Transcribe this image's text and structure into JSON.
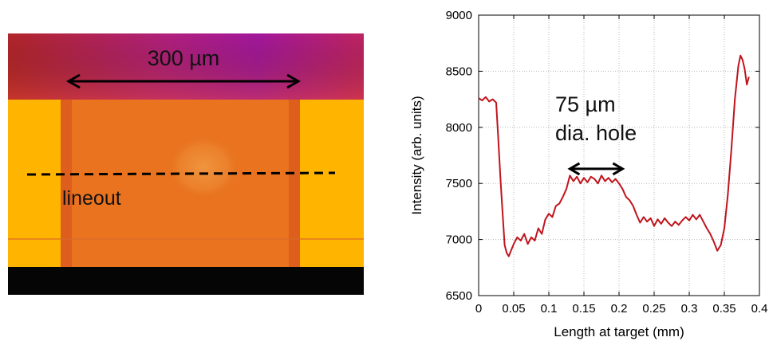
{
  "image_panel": {
    "scale_label": "300 µm",
    "lineout_label": "lineout"
  },
  "colors": {
    "trace": "#c0141c",
    "axis": "#000000",
    "grid": "#b8b8b8",
    "image_top": "#b2207e",
    "image_side": "#ffb400",
    "image_center": "#e9731f",
    "image_bottom": "#050505"
  },
  "chart_data": {
    "type": "line",
    "title": "",
    "xlabel": "Length at target (mm)",
    "ylabel": "Intensity (arb. units)",
    "xlim": [
      0,
      0.4
    ],
    "ylim": [
      6500,
      9000
    ],
    "xticks": [
      "0",
      "0.05",
      "0.1",
      "0.15",
      "0.2",
      "0.25",
      "0.3",
      "0.35",
      "0.4"
    ],
    "yticks": [
      "6500",
      "7000",
      "7500",
      "8000",
      "8500",
      "9000"
    ],
    "grid": true,
    "annotation": {
      "line1": "75 µm",
      "line2": "dia. hole",
      "x_range": [
        0.13,
        0.205
      ],
      "y": 7630
    },
    "series": [
      {
        "x": [
          0.0,
          0.005,
          0.01,
          0.015,
          0.02,
          0.025,
          0.028,
          0.031,
          0.034,
          0.037,
          0.04,
          0.043,
          0.046,
          0.05,
          0.055,
          0.06,
          0.065,
          0.07,
          0.075,
          0.08,
          0.085,
          0.09,
          0.095,
          0.1,
          0.105,
          0.11,
          0.115,
          0.12,
          0.125,
          0.13,
          0.135,
          0.14,
          0.145,
          0.15,
          0.155,
          0.16,
          0.165,
          0.17,
          0.175,
          0.18,
          0.185,
          0.19,
          0.195,
          0.2,
          0.205,
          0.21,
          0.215,
          0.22,
          0.225,
          0.23,
          0.235,
          0.24,
          0.245,
          0.25,
          0.255,
          0.26,
          0.265,
          0.27,
          0.275,
          0.28,
          0.285,
          0.29,
          0.295,
          0.3,
          0.305,
          0.31,
          0.315,
          0.32,
          0.325,
          0.33,
          0.335,
          0.34,
          0.345,
          0.35,
          0.355,
          0.36,
          0.365,
          0.37,
          0.373,
          0.376,
          0.379,
          0.382,
          0.385
        ],
        "values": [
          8260,
          8240,
          8270,
          8230,
          8250,
          8220,
          7900,
          7550,
          7250,
          6950,
          6880,
          6850,
          6900,
          6960,
          7020,
          6990,
          7050,
          6960,
          7020,
          6990,
          7100,
          7050,
          7180,
          7230,
          7200,
          7300,
          7320,
          7380,
          7450,
          7570,
          7520,
          7560,
          7500,
          7550,
          7510,
          7560,
          7540,
          7500,
          7570,
          7520,
          7550,
          7510,
          7540,
          7500,
          7450,
          7380,
          7350,
          7300,
          7220,
          7150,
          7200,
          7160,
          7190,
          7120,
          7180,
          7140,
          7190,
          7150,
          7120,
          7160,
          7130,
          7170,
          7200,
          7170,
          7220,
          7180,
          7220,
          7160,
          7100,
          7050,
          6980,
          6900,
          6950,
          7100,
          7400,
          7800,
          8250,
          8550,
          8640,
          8600,
          8520,
          8380,
          8450
        ]
      }
    ]
  }
}
